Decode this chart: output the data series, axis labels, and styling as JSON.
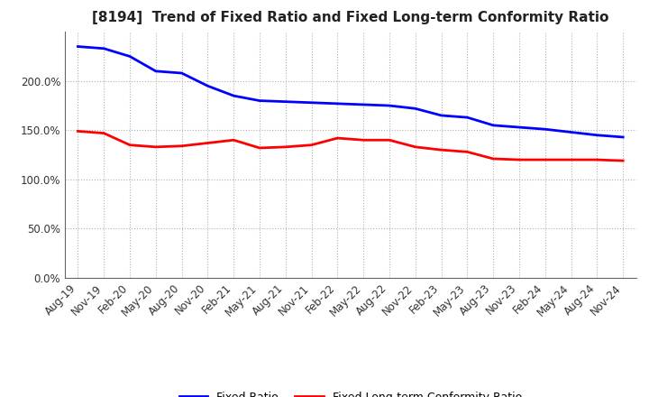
{
  "title": "[8194]  Trend of Fixed Ratio and Fixed Long-term Conformity Ratio",
  "x_labels": [
    "Aug-19",
    "Nov-19",
    "Feb-20",
    "May-20",
    "Aug-20",
    "Nov-20",
    "Feb-21",
    "May-21",
    "Aug-21",
    "Nov-21",
    "Feb-22",
    "May-22",
    "Aug-22",
    "Nov-22",
    "Feb-23",
    "May-23",
    "Aug-23",
    "Nov-23",
    "Feb-24",
    "May-24",
    "Aug-24",
    "Nov-24"
  ],
  "fixed_ratio": [
    235,
    233,
    225,
    210,
    208,
    195,
    185,
    180,
    179,
    178,
    177,
    176,
    175,
    172,
    165,
    163,
    155,
    153,
    151,
    148,
    145,
    143
  ],
  "fixed_lt_ratio": [
    149,
    147,
    135,
    133,
    134,
    137,
    140,
    132,
    133,
    135,
    142,
    140,
    140,
    133,
    130,
    128,
    121,
    120,
    120,
    120,
    120,
    119
  ],
  "ylim": [
    0,
    250
  ],
  "yticks": [
    0,
    50,
    100,
    150,
    200
  ],
  "ytick_labels": [
    "0.0%",
    "50.0%",
    "100.0%",
    "150.0%",
    "200.0%"
  ],
  "line_color_fixed": "#0000ff",
  "line_color_lt": "#ff0000",
  "legend_fixed": "Fixed Ratio",
  "legend_lt": "Fixed Long-term Conformity Ratio",
  "background_color": "#ffffff",
  "plot_bg_color": "#ffffff",
  "grid_color": "#b0b0b0",
  "title_fontsize": 11,
  "tick_fontsize": 8.5,
  "legend_fontsize": 9
}
